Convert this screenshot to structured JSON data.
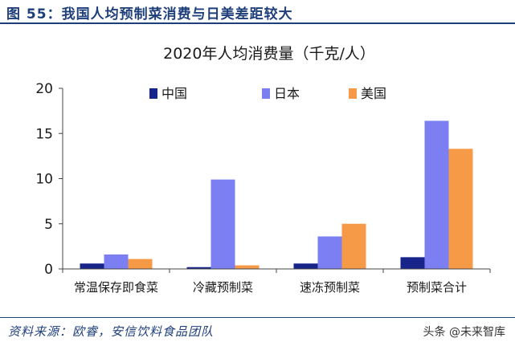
{
  "figure": {
    "title": "图 55：我国人均预制菜消费与日美差距较大",
    "source": "资料来源：欧睿，安信饮料食品团队"
  },
  "watermark": "头条 @未来智库",
  "colors": {
    "china": "#17248a",
    "japan": "#7b7ff2",
    "usa": "#f79a48",
    "accent": "#1f3f7a"
  },
  "chart_data": {
    "type": "bar",
    "title": "2020年人均消费量（千克/人）",
    "xlabel": "",
    "ylabel": "",
    "categories": [
      "常温保存即食菜",
      "冷藏预制菜",
      "速冻预制菜",
      "预制菜合计"
    ],
    "series": [
      {
        "name": "中国",
        "values": [
          0.6,
          0.2,
          0.6,
          1.3
        ]
      },
      {
        "name": "日本",
        "values": [
          1.6,
          9.9,
          3.6,
          16.4
        ]
      },
      {
        "name": "美国",
        "values": [
          1.1,
          0.4,
          5.0,
          13.3
        ]
      }
    ],
    "ylim": [
      0,
      20
    ],
    "yticks": [
      "0",
      "5",
      "10",
      "15",
      "20"
    ],
    "grid": false,
    "legend": "top"
  }
}
